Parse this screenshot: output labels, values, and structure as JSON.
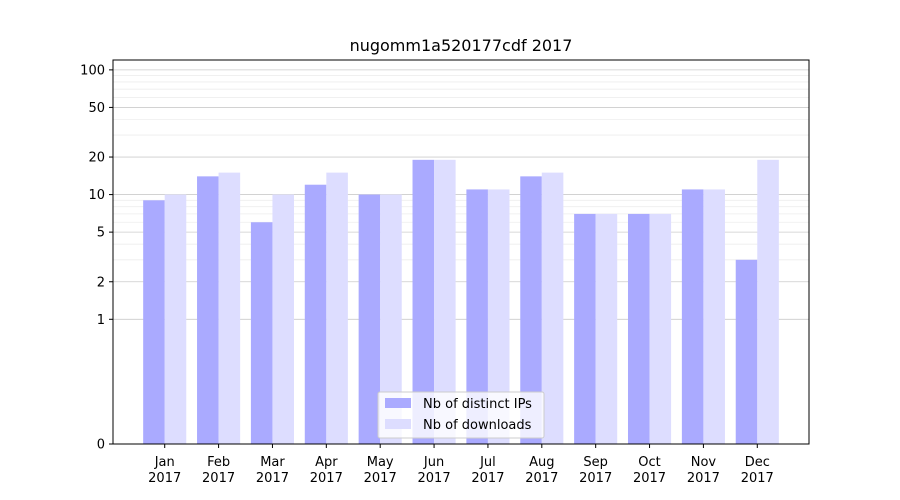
{
  "chart_data": {
    "type": "bar",
    "title": "nugomm1a520177cdf 2017",
    "xlabel": "",
    "ylabel": "",
    "y_scale": "symlog",
    "ylim": [
      0,
      120
    ],
    "y_ticks": [
      0,
      1,
      2,
      5,
      10,
      20,
      50,
      100
    ],
    "categories": [
      "Jan\n2017",
      "Feb\n2017",
      "Mar\n2017",
      "Apr\n2017",
      "May\n2017",
      "Jun\n2017",
      "Jul\n2017",
      "Aug\n2017",
      "Sep\n2017",
      "Oct\n2017",
      "Nov\n2017",
      "Dec\n2017"
    ],
    "series": [
      {
        "name": "Nb of distinct IPs",
        "color": "#aaaaff",
        "values": [
          9,
          14,
          6,
          12,
          10,
          19,
          11,
          14,
          7,
          7,
          11,
          3
        ]
      },
      {
        "name": "Nb of downloads",
        "color": "#ddddff",
        "values": [
          10,
          15,
          10,
          15,
          10,
          19,
          11,
          15,
          7,
          7,
          11,
          19
        ]
      }
    ],
    "grid": true,
    "legend_position": "bottom-center"
  }
}
